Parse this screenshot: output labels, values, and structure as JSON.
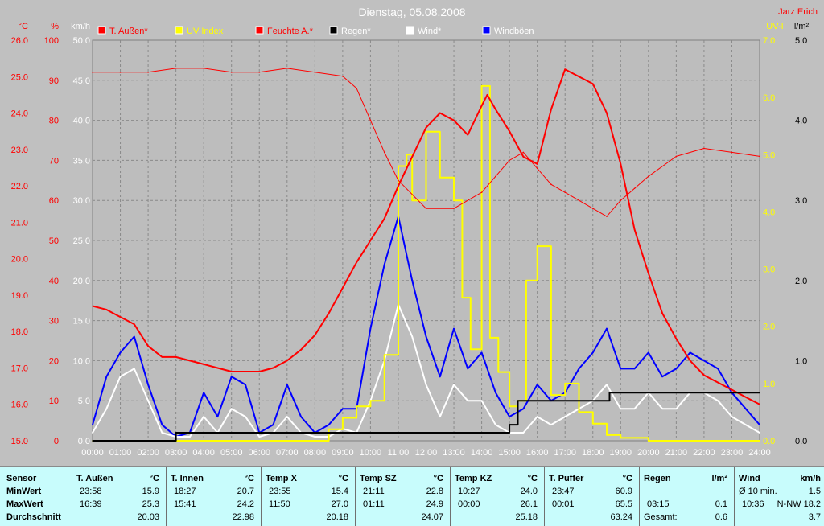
{
  "chart_data": {
    "type": "line",
    "title": "Dienstag, 05.08.2008",
    "author": "Jarz Erich",
    "x_ticks": [
      "00:00",
      "01:00",
      "02:00",
      "03:00",
      "04:00",
      "05:00",
      "06:00",
      "07:00",
      "08:00",
      "09:00",
      "10:00",
      "11:00",
      "12:00",
      "13:00",
      "14:00",
      "15:00",
      "16:00",
      "17:00",
      "18:00",
      "19:00",
      "20:00",
      "21:00",
      "22:00",
      "23:00",
      "24:00"
    ],
    "left_axes": [
      {
        "unit": "°C",
        "min": 15.0,
        "max": 26.0,
        "ticks": [
          "26.0",
          "25.0",
          "24.0",
          "23.0",
          "22.0",
          "21.0",
          "20.0",
          "19.0",
          "18.0",
          "17.0",
          "16.0",
          "15.0"
        ],
        "color": "#ff0000"
      },
      {
        "unit": "%",
        "min": 0,
        "max": 100,
        "ticks": [
          "100",
          "90",
          "80",
          "70",
          "60",
          "50",
          "40",
          "30",
          "20",
          "10",
          "0"
        ],
        "color": "#ff0000"
      },
      {
        "unit": "km/h",
        "min": 0.0,
        "max": 50.0,
        "ticks": [
          "50.0",
          "45.0",
          "40.0",
          "35.0",
          "30.0",
          "25.0",
          "20.0",
          "15.0",
          "10.0",
          "5.0",
          "0.0"
        ],
        "color": "#ffffff"
      }
    ],
    "right_axes": [
      {
        "unit": "UV-I",
        "min": 0.0,
        "max": 7.0,
        "ticks": [
          "7.0",
          "6.0",
          "5.0",
          "4.0",
          "3.0",
          "2.0",
          "1.0",
          "0.0"
        ],
        "color": "#ffff00"
      },
      {
        "unit": "l/m²",
        "min": 0.0,
        "max": 5.0,
        "ticks": [
          "5.0",
          "4.0",
          "3.0",
          "2.0",
          "1.0",
          "0.0"
        ],
        "color": "#000000"
      }
    ],
    "legend": [
      "T. Außen*",
      "UV Index",
      "Feuchte A.*",
      "Regen*",
      "Wind*",
      "Windböen"
    ],
    "series": [
      {
        "name": "T. Außen*",
        "color": "#ff0000",
        "axis": "°C",
        "x": [
          0,
          0.5,
          1,
          1.5,
          2,
          2.5,
          3,
          3.5,
          4,
          4.5,
          5,
          5.5,
          6,
          6.5,
          7,
          7.5,
          8,
          8.5,
          9,
          9.5,
          10,
          10.5,
          11,
          11.5,
          12,
          12.5,
          13,
          13.5,
          14,
          14.2,
          14.5,
          15,
          15.5,
          16,
          16.5,
          17,
          17.5,
          18,
          18.5,
          19,
          19.5,
          20,
          20.5,
          21,
          21.5,
          22,
          22.5,
          23,
          23.5,
          24
        ],
        "y": [
          18.7,
          18.6,
          18.4,
          18.2,
          17.6,
          17.3,
          17.3,
          17.2,
          17.1,
          17.0,
          16.9,
          16.9,
          16.9,
          17.0,
          17.2,
          17.5,
          17.9,
          18.5,
          19.2,
          19.9,
          20.5,
          21.1,
          22.0,
          22.8,
          23.6,
          24.0,
          23.8,
          23.4,
          24.2,
          24.5,
          24.1,
          23.5,
          22.8,
          22.6,
          24.1,
          25.2,
          25.0,
          24.8,
          24.0,
          22.6,
          20.8,
          19.6,
          18.5,
          17.8,
          17.2,
          16.8,
          16.6,
          16.4,
          16.2,
          16.0
        ]
      },
      {
        "name": "Feuchte A.*",
        "color": "#ff0000",
        "axis": "%",
        "x": [
          0,
          1,
          2,
          3,
          4,
          5,
          6,
          7,
          8,
          9,
          9.5,
          10,
          10.5,
          11,
          12,
          13,
          14,
          14.5,
          15,
          15.5,
          16,
          16.5,
          17,
          17.5,
          18,
          18.5,
          19,
          19.5,
          20,
          21,
          22,
          23,
          24
        ],
        "y": [
          92,
          92,
          92,
          93,
          93,
          92,
          92,
          93,
          92,
          91,
          88,
          80,
          72,
          65,
          58,
          58,
          62,
          66,
          70,
          72,
          68,
          64,
          62,
          60,
          58,
          56,
          60,
          63,
          66,
          71,
          73,
          72,
          71
        ]
      },
      {
        "name": "UV Index",
        "color": "#ffff00",
        "axis": "UV-I",
        "x": [
          0,
          8,
          8.5,
          9,
          9.5,
          10,
          10.5,
          11,
          11.3,
          11.5,
          12,
          12.5,
          13,
          13.3,
          13.6,
          14,
          14.3,
          14.6,
          15,
          15.3,
          15.6,
          16,
          16.5,
          17,
          17.5,
          18,
          18.5,
          19,
          20,
          24
        ],
        "y": [
          0,
          0,
          0.2,
          0.4,
          0.6,
          0.7,
          1.5,
          4.8,
          5.0,
          4.2,
          5.4,
          4.6,
          4.2,
          2.5,
          1.6,
          6.2,
          1.8,
          1.2,
          0.6,
          0.7,
          2.8,
          3.4,
          0.8,
          1.0,
          0.5,
          0.3,
          0.1,
          0.05,
          0,
          0
        ]
      },
      {
        "name": "Regen*",
        "color": "#000000",
        "axis": "l/m²",
        "x": [
          0,
          2.9,
          3.0,
          14.8,
          15.0,
          15.3,
          17.5,
          18.4,
          18.6,
          24
        ],
        "y": [
          0,
          0,
          0.1,
          0.1,
          0.2,
          0.5,
          0.5,
          0.5,
          0.6,
          0.6
        ]
      },
      {
        "name": "Wind*",
        "color": "#ffffff",
        "axis": "km/h",
        "x": [
          0,
          0.5,
          1,
          1.5,
          2,
          2.5,
          3,
          3.5,
          4,
          4.5,
          5,
          5.5,
          6,
          6.5,
          7,
          7.5,
          8,
          8.5,
          9,
          9.5,
          10,
          10.5,
          11,
          11.5,
          12,
          12.5,
          13,
          13.5,
          14,
          14.5,
          15,
          15.5,
          16,
          16.5,
          17,
          17.5,
          18,
          18.5,
          19,
          19.5,
          20,
          20.5,
          21,
          21.5,
          22,
          22.5,
          23,
          23.5,
          24
        ],
        "y": [
          1,
          4,
          8,
          9,
          5,
          1,
          0.5,
          0.5,
          3,
          1,
          4,
          3,
          0.5,
          1,
          3,
          1,
          0.5,
          0.5,
          1.5,
          1,
          5,
          10,
          17,
          13,
          7,
          3,
          7,
          5,
          5,
          2,
          1,
          1,
          3,
          2,
          3,
          4,
          5,
          7,
          4,
          4,
          6,
          4,
          4,
          6,
          6,
          5,
          3,
          2,
          1
        ]
      },
      {
        "name": "Windböen",
        "color": "#0000ff",
        "axis": "km/h",
        "x": [
          0,
          0.5,
          1,
          1.5,
          2,
          2.5,
          3,
          3.5,
          4,
          4.5,
          5,
          5.5,
          6,
          6.5,
          7,
          7.5,
          8,
          8.5,
          9,
          9.5,
          10,
          10.5,
          11,
          11.5,
          12,
          12.5,
          13,
          13.5,
          14,
          14.5,
          15,
          15.5,
          16,
          16.5,
          17,
          17.5,
          18,
          18.5,
          19,
          19.5,
          20,
          20.5,
          21,
          21.5,
          22,
          22.5,
          23,
          23.5,
          24
        ],
        "y": [
          2,
          8,
          11,
          13,
          7,
          2,
          0.5,
          1,
          6,
          3,
          8,
          7,
          1,
          2,
          7,
          3,
          1,
          2,
          4,
          4,
          14,
          22,
          28,
          20,
          13,
          8,
          14,
          9,
          11,
          6,
          3,
          4,
          7,
          5,
          6,
          9,
          11,
          14,
          9,
          9,
          11,
          8,
          9,
          11,
          10,
          9,
          6,
          4,
          2
        ]
      }
    ]
  },
  "stats": {
    "row_labels": [
      "Sensor",
      "MinWert",
      "MaxWert",
      "Durchschnitt"
    ],
    "sensors": [
      {
        "name": "T. Außen",
        "unit": "°C",
        "min_time": "23:58",
        "min": "15.9",
        "max_time": "16:39",
        "max": "25.3",
        "avg": "20.03"
      },
      {
        "name": "T. Innen",
        "unit": "°C",
        "min_time": "18:27",
        "min": "20.7",
        "max_time": "15:41",
        "max": "24.2",
        "avg": "22.98"
      },
      {
        "name": "Temp X",
        "unit": "°C",
        "min_time": "23:55",
        "min": "15.4",
        "max_time": "11:50",
        "max": "27.0",
        "avg": "20.18"
      },
      {
        "name": "Temp SZ",
        "unit": "°C",
        "min_time": "21:11",
        "min": "22.8",
        "max_time": "01:11",
        "max": "24.9",
        "avg": "24.07"
      },
      {
        "name": "Temp KZ",
        "unit": "°C",
        "min_time": "10:27",
        "min": "24.0",
        "max_time": "00:00",
        "max": "26.1",
        "avg": "25.18"
      },
      {
        "name": "T. Puffer",
        "unit": "°C",
        "min_time": "23:47",
        "min": "60.9",
        "max_time": "00:01",
        "max": "65.5",
        "avg": "63.24"
      }
    ],
    "rain": {
      "name": "Regen",
      "unit": "l/m²",
      "max_time": "03:15",
      "max": "0.1",
      "total_label": "Gesamt:",
      "total": "0.6"
    },
    "wind": {
      "name": "Wind",
      "unit": "km/h",
      "min_label": "Ø 10 min.",
      "min": "1.5",
      "max_time": "10:36",
      "max": "N-NW 18.2",
      "avg": "3.7"
    }
  }
}
